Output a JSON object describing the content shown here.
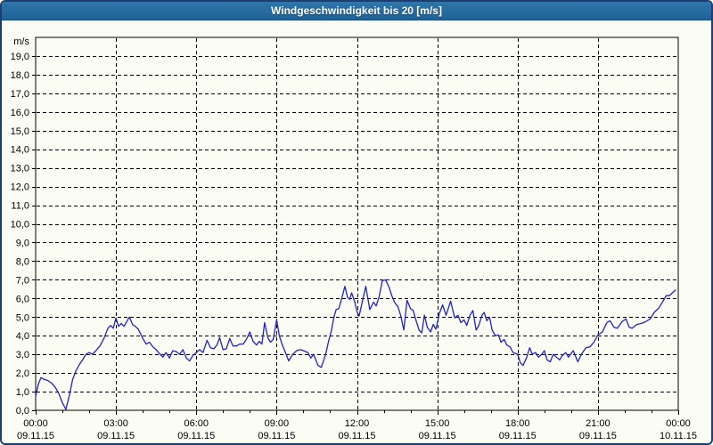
{
  "window": {
    "title": "Windgeschwindigkeit bis 20 [m/s]"
  },
  "colors": {
    "titlebar_top": "#2f76aa",
    "titlebar_bottom": "#1f6296",
    "window_border": "#1d3e6f",
    "panel_bg": "#fbfcf4",
    "plot_frame": "#000000",
    "gridline": "#000000",
    "tick_text": "#000000",
    "series_line": "#2222c8",
    "title_text": "#ffffff"
  },
  "chart_data": {
    "type": "line",
    "title": "Windgeschwindigkeit bis 20 [m/s]",
    "ylabel": "m/s",
    "ylim": [
      0,
      20
    ],
    "xlim_hours": [
      0,
      24
    ],
    "grid": true,
    "legend": "none",
    "y_tick_labels": [
      "0,0",
      "1,0",
      "2,0",
      "3,0",
      "4,0",
      "5,0",
      "6,0",
      "7,0",
      "8,0",
      "9,0",
      "10,0",
      "11,0",
      "12,0",
      "13,0",
      "14,0",
      "15,0",
      "16,0",
      "17,0",
      "18,0",
      "19,0"
    ],
    "x_minor_tick_every_hours": 1,
    "x_ticks": [
      {
        "hour": 0,
        "time": "00:00",
        "date": "09.11.15"
      },
      {
        "hour": 3,
        "time": "03:00",
        "date": "09.11.15"
      },
      {
        "hour": 6,
        "time": "06:00",
        "date": "09.11.15"
      },
      {
        "hour": 9,
        "time": "09:00",
        "date": "09.11.15"
      },
      {
        "hour": 12,
        "time": "12:00",
        "date": "09.11.15"
      },
      {
        "hour": 15,
        "time": "15:00",
        "date": "09.11.15"
      },
      {
        "hour": 18,
        "time": "18:00",
        "date": "09.11.15"
      },
      {
        "hour": 21,
        "time": "21:00",
        "date": "09.11.15"
      },
      {
        "hour": 24,
        "time": "00:00",
        "date": "10.11.15"
      }
    ],
    "series": [
      {
        "name": "Windgeschwindigkeit",
        "unit": "m/s",
        "points": [
          [
            0.0,
            0.75
          ],
          [
            0.1,
            1.4
          ],
          [
            0.2,
            1.75
          ],
          [
            0.33,
            1.65
          ],
          [
            0.45,
            1.6
          ],
          [
            0.6,
            1.45
          ],
          [
            0.75,
            1.2
          ],
          [
            0.88,
            0.85
          ],
          [
            1.0,
            0.4
          ],
          [
            1.13,
            0.05
          ],
          [
            1.25,
            0.75
          ],
          [
            1.38,
            1.65
          ],
          [
            1.5,
            2.1
          ],
          [
            1.63,
            2.45
          ],
          [
            1.75,
            2.7
          ],
          [
            1.88,
            3.0
          ],
          [
            2.0,
            3.1
          ],
          [
            2.12,
            3.0
          ],
          [
            2.25,
            3.2
          ],
          [
            2.4,
            3.45
          ],
          [
            2.55,
            3.85
          ],
          [
            2.7,
            4.4
          ],
          [
            2.8,
            4.55
          ],
          [
            2.9,
            4.4
          ],
          [
            3.0,
            4.95
          ],
          [
            3.1,
            4.5
          ],
          [
            3.2,
            4.65
          ],
          [
            3.3,
            4.5
          ],
          [
            3.42,
            4.8
          ],
          [
            3.5,
            5.0
          ],
          [
            3.62,
            4.6
          ],
          [
            3.72,
            4.5
          ],
          [
            3.83,
            4.35
          ],
          [
            3.92,
            4.1
          ],
          [
            4.0,
            3.85
          ],
          [
            4.13,
            3.55
          ],
          [
            4.25,
            3.65
          ],
          [
            4.38,
            3.4
          ],
          [
            4.5,
            3.25
          ],
          [
            4.62,
            3.05
          ],
          [
            4.75,
            2.85
          ],
          [
            4.87,
            3.1
          ],
          [
            5.0,
            2.8
          ],
          [
            5.12,
            3.2
          ],
          [
            5.25,
            3.15
          ],
          [
            5.38,
            3.0
          ],
          [
            5.5,
            3.25
          ],
          [
            5.63,
            2.8
          ],
          [
            5.75,
            2.65
          ],
          [
            5.88,
            2.95
          ],
          [
            6.0,
            3.1
          ],
          [
            6.12,
            3.25
          ],
          [
            6.25,
            3.1
          ],
          [
            6.4,
            3.75
          ],
          [
            6.53,
            3.35
          ],
          [
            6.65,
            3.3
          ],
          [
            6.77,
            3.5
          ],
          [
            6.87,
            3.9
          ],
          [
            7.0,
            3.25
          ],
          [
            7.12,
            3.3
          ],
          [
            7.25,
            3.85
          ],
          [
            7.37,
            3.45
          ],
          [
            7.5,
            3.45
          ],
          [
            7.62,
            3.55
          ],
          [
            7.75,
            3.55
          ],
          [
            7.87,
            3.8
          ],
          [
            8.0,
            4.2
          ],
          [
            8.12,
            3.7
          ],
          [
            8.25,
            3.5
          ],
          [
            8.35,
            3.7
          ],
          [
            8.45,
            3.55
          ],
          [
            8.55,
            4.7
          ],
          [
            8.67,
            3.9
          ],
          [
            8.77,
            3.65
          ],
          [
            8.87,
            3.8
          ],
          [
            9.0,
            4.85
          ],
          [
            9.1,
            4.0
          ],
          [
            9.2,
            3.55
          ],
          [
            9.33,
            3.1
          ],
          [
            9.45,
            2.65
          ],
          [
            9.6,
            3.0
          ],
          [
            9.75,
            3.2
          ],
          [
            9.9,
            3.25
          ],
          [
            10.0,
            3.2
          ],
          [
            10.17,
            3.1
          ],
          [
            10.28,
            2.8
          ],
          [
            10.38,
            3.0
          ],
          [
            10.55,
            2.4
          ],
          [
            10.67,
            2.3
          ],
          [
            10.83,
            3.0
          ],
          [
            10.93,
            3.65
          ],
          [
            11.05,
            4.3
          ],
          [
            11.13,
            4.95
          ],
          [
            11.22,
            5.4
          ],
          [
            11.32,
            5.45
          ],
          [
            11.43,
            6.0
          ],
          [
            11.55,
            6.65
          ],
          [
            11.65,
            6.05
          ],
          [
            11.73,
            5.95
          ],
          [
            11.8,
            6.3
          ],
          [
            11.92,
            5.8
          ],
          [
            12.0,
            5.3
          ],
          [
            12.08,
            5.05
          ],
          [
            12.33,
            6.65
          ],
          [
            12.48,
            5.4
          ],
          [
            12.62,
            5.8
          ],
          [
            12.72,
            5.6
          ],
          [
            12.83,
            6.1
          ],
          [
            12.95,
            6.95
          ],
          [
            13.07,
            7.0
          ],
          [
            13.2,
            6.6
          ],
          [
            13.3,
            6.15
          ],
          [
            13.42,
            5.75
          ],
          [
            13.53,
            5.55
          ],
          [
            13.63,
            5.1
          ],
          [
            13.75,
            4.3
          ],
          [
            13.87,
            5.9
          ],
          [
            14.0,
            5.45
          ],
          [
            14.1,
            5.35
          ],
          [
            14.2,
            4.85
          ],
          [
            14.32,
            4.3
          ],
          [
            14.42,
            4.15
          ],
          [
            14.52,
            5.1
          ],
          [
            14.63,
            4.45
          ],
          [
            14.75,
            4.2
          ],
          [
            14.85,
            4.6
          ],
          [
            14.95,
            4.35
          ],
          [
            15.08,
            5.2
          ],
          [
            15.2,
            5.65
          ],
          [
            15.33,
            5.1
          ],
          [
            15.5,
            5.85
          ],
          [
            15.65,
            4.95
          ],
          [
            15.77,
            5.1
          ],
          [
            15.88,
            4.7
          ],
          [
            16.0,
            4.85
          ],
          [
            16.1,
            4.55
          ],
          [
            16.22,
            5.1
          ],
          [
            16.33,
            5.35
          ],
          [
            16.45,
            4.3
          ],
          [
            16.55,
            4.55
          ],
          [
            16.67,
            5.1
          ],
          [
            16.75,
            5.25
          ],
          [
            16.85,
            4.8
          ],
          [
            16.95,
            5.0
          ],
          [
            17.05,
            4.3
          ],
          [
            17.17,
            4.0
          ],
          [
            17.28,
            4.05
          ],
          [
            17.38,
            3.65
          ],
          [
            17.5,
            3.8
          ],
          [
            17.6,
            3.5
          ],
          [
            17.72,
            3.4
          ],
          [
            17.83,
            3.1
          ],
          [
            18.0,
            3.0
          ],
          [
            18.1,
            2.55
          ],
          [
            18.2,
            2.4
          ],
          [
            18.33,
            2.8
          ],
          [
            18.45,
            3.35
          ],
          [
            18.55,
            3.0
          ],
          [
            18.67,
            3.1
          ],
          [
            18.78,
            2.85
          ],
          [
            18.9,
            3.0
          ],
          [
            19.0,
            3.2
          ],
          [
            19.1,
            2.7
          ],
          [
            19.22,
            2.6
          ],
          [
            19.33,
            3.0
          ],
          [
            19.45,
            2.85
          ],
          [
            19.57,
            2.7
          ],
          [
            19.68,
            2.95
          ],
          [
            19.8,
            3.1
          ],
          [
            19.9,
            2.85
          ],
          [
            20.0,
            3.05
          ],
          [
            20.08,
            3.2
          ],
          [
            20.25,
            2.6
          ],
          [
            20.4,
            3.05
          ],
          [
            20.55,
            3.35
          ],
          [
            20.7,
            3.4
          ],
          [
            20.85,
            3.65
          ],
          [
            21.0,
            4.05
          ],
          [
            21.17,
            4.2
          ],
          [
            21.33,
            4.7
          ],
          [
            21.45,
            4.8
          ],
          [
            21.6,
            4.45
          ],
          [
            21.73,
            4.4
          ],
          [
            21.9,
            4.75
          ],
          [
            22.05,
            4.9
          ],
          [
            22.17,
            4.45
          ],
          [
            22.28,
            4.4
          ],
          [
            22.45,
            4.6
          ],
          [
            22.6,
            4.65
          ],
          [
            22.78,
            4.75
          ],
          [
            22.95,
            4.9
          ],
          [
            23.1,
            5.25
          ],
          [
            23.28,
            5.5
          ],
          [
            23.45,
            5.9
          ],
          [
            23.55,
            6.15
          ],
          [
            23.67,
            6.15
          ],
          [
            23.78,
            6.3
          ],
          [
            23.9,
            6.45
          ]
        ]
      }
    ]
  }
}
